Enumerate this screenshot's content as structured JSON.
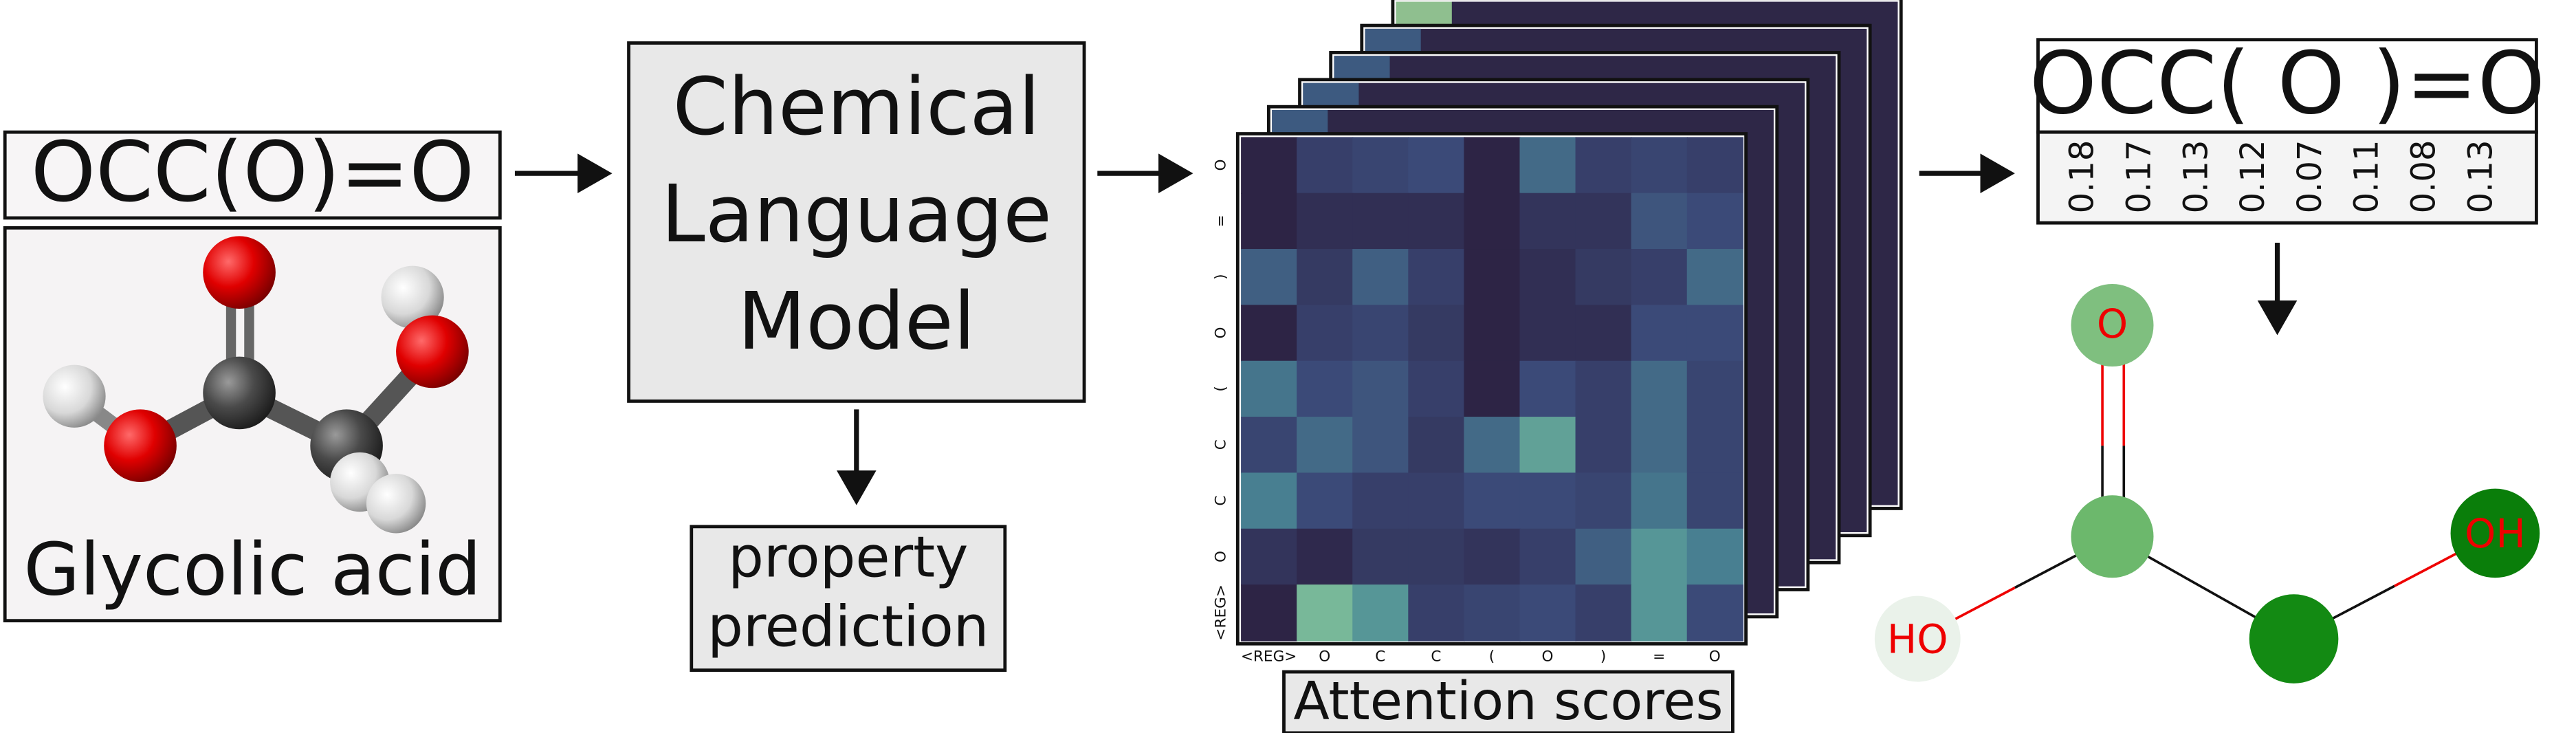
{
  "input": {
    "smiles": "OCC(O)=O",
    "name": "Glycolic acid"
  },
  "model": {
    "lines": [
      "Chemical",
      "Language",
      "Model"
    ]
  },
  "task": {
    "lines": [
      "property",
      "prediction"
    ]
  },
  "attention": {
    "title": "Attention scores",
    "x_tokens": [
      "<REG>",
      "O",
      "C",
      "C",
      "(",
      "O",
      ")",
      "=",
      "O"
    ],
    "y_tokens": [
      "O",
      "=",
      ")",
      "O",
      "(",
      "C",
      "C",
      "O",
      "<REG>"
    ],
    "scores": [
      [
        0.05,
        0.3,
        0.35,
        0.4,
        0.05,
        0.55,
        0.3,
        0.35,
        0.3
      ],
      [
        0.05,
        0.15,
        0.15,
        0.15,
        0.05,
        0.2,
        0.2,
        0.45,
        0.4
      ],
      [
        0.5,
        0.25,
        0.5,
        0.3,
        0.05,
        0.15,
        0.25,
        0.3,
        0.55
      ],
      [
        0.05,
        0.3,
        0.35,
        0.25,
        0.05,
        0.15,
        0.15,
        0.4,
        0.4
      ],
      [
        0.6,
        0.4,
        0.45,
        0.3,
        0.05,
        0.4,
        0.3,
        0.55,
        0.35
      ],
      [
        0.35,
        0.55,
        0.45,
        0.25,
        0.55,
        0.8,
        0.3,
        0.55,
        0.35
      ],
      [
        0.65,
        0.4,
        0.3,
        0.3,
        0.4,
        0.4,
        0.35,
        0.6,
        0.35
      ],
      [
        0.2,
        0.1,
        0.25,
        0.25,
        0.2,
        0.3,
        0.5,
        0.75,
        0.65
      ],
      [
        0.05,
        0.9,
        0.75,
        0.3,
        0.35,
        0.4,
        0.3,
        0.75,
        0.4
      ]
    ]
  },
  "output": {
    "smiles": "OCC( O )=O",
    "weights": [
      0.18,
      0.17,
      0.13,
      0.12,
      0.07,
      0.11,
      0.08,
      0.13
    ]
  },
  "molecule": {
    "atoms": [
      "O",
      "HO",
      "OH"
    ]
  }
}
